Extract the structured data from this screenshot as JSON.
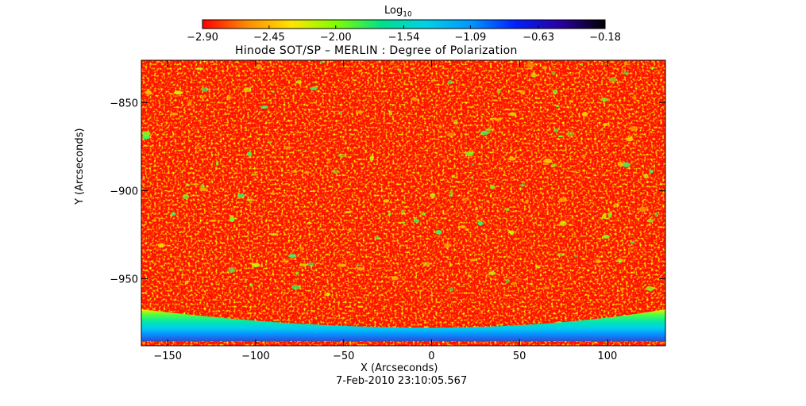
{
  "chart_data": {
    "type": "heatmap",
    "title": "Hinode SOT/SP – MERLIN : Degree of Polarization",
    "xlabel": "X (Arcseconds)",
    "ylabel": "Y (Arcseconds)",
    "xlim": [
      -165,
      133
    ],
    "ylim": [
      -988,
      -826
    ],
    "x_ticks": [
      -150,
      -100,
      -50,
      0,
      50,
      100
    ],
    "y_ticks": [
      -850,
      -900,
      -950
    ],
    "colorbar": {
      "label": "Log",
      "label_subscript": "10",
      "range": [
        -2.9,
        -0.18
      ],
      "tick_labels": [
        "-2.90",
        "-2.45",
        "-2.00",
        "-1.54",
        "-1.09",
        "-0.63",
        "-0.18"
      ],
      "colors": [
        "#ff0000",
        "#ff8c00",
        "#ffe600",
        "#7dff00",
        "#00e08a",
        "#00d2e6",
        "#0096ff",
        "#0020ff",
        "#2a00a0",
        "#000000"
      ]
    },
    "limb": {
      "y_center_edge": -981,
      "y_side_edge": -970
    },
    "background_value": -2.9,
    "date": "7-Feb-2010 23:10:05.567"
  }
}
